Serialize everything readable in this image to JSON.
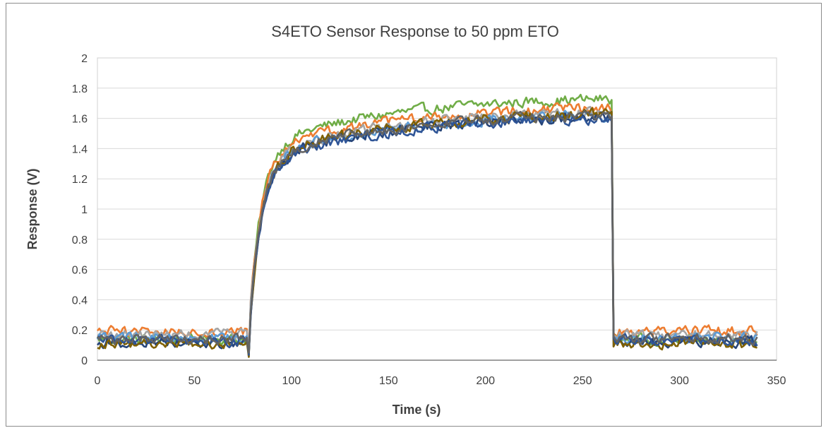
{
  "chart_data": {
    "type": "line",
    "title": "S4ETO Sensor Response to 50 ppm ETO",
    "xlabel": "Time (s)",
    "ylabel": "Response (V)",
    "xlim": [
      0,
      350
    ],
    "ylim": [
      0,
      2
    ],
    "x_ticks": [
      "0",
      "50",
      "100",
      "150",
      "200",
      "250",
      "300",
      "350"
    ],
    "y_ticks": [
      "0",
      "0.2",
      "0.4",
      "0.6",
      "0.8",
      "1",
      "1.2",
      "1.4",
      "1.6",
      "1.8",
      "2"
    ],
    "grid": "horizontal",
    "legend": "none",
    "colors": [
      "#70AD47",
      "#ED7D31",
      "#A5A5A5",
      "#5B9BD5",
      "#264478",
      "#7F6000",
      "#2F5597",
      "#636363"
    ],
    "series": [
      {
        "color": "#70AD47",
        "baseline": 0.14,
        "plateau": 1.73
      },
      {
        "color": "#ED7D31",
        "baseline": 0.19,
        "plateau": 1.67
      },
      {
        "color": "#A5A5A5",
        "baseline": 0.17,
        "plateau": 1.64
      },
      {
        "color": "#5B9BD5",
        "baseline": 0.15,
        "plateau": 1.62
      },
      {
        "color": "#264478",
        "baseline": 0.12,
        "plateau": 1.61
      },
      {
        "color": "#7F6000",
        "baseline": 0.11,
        "plateau": 1.63
      },
      {
        "color": "#2F5597",
        "baseline": 0.13,
        "plateau": 1.6
      },
      {
        "color": "#636363",
        "baseline": 0.14,
        "plateau": 1.62
      }
    ],
    "profile": {
      "gas_on_time": 78,
      "gas_off_time": 265,
      "end_time": 340,
      "time_step": 1,
      "fast_time_constant": 6,
      "slow_time_constant": 70,
      "fast_fraction": 0.78
    }
  }
}
